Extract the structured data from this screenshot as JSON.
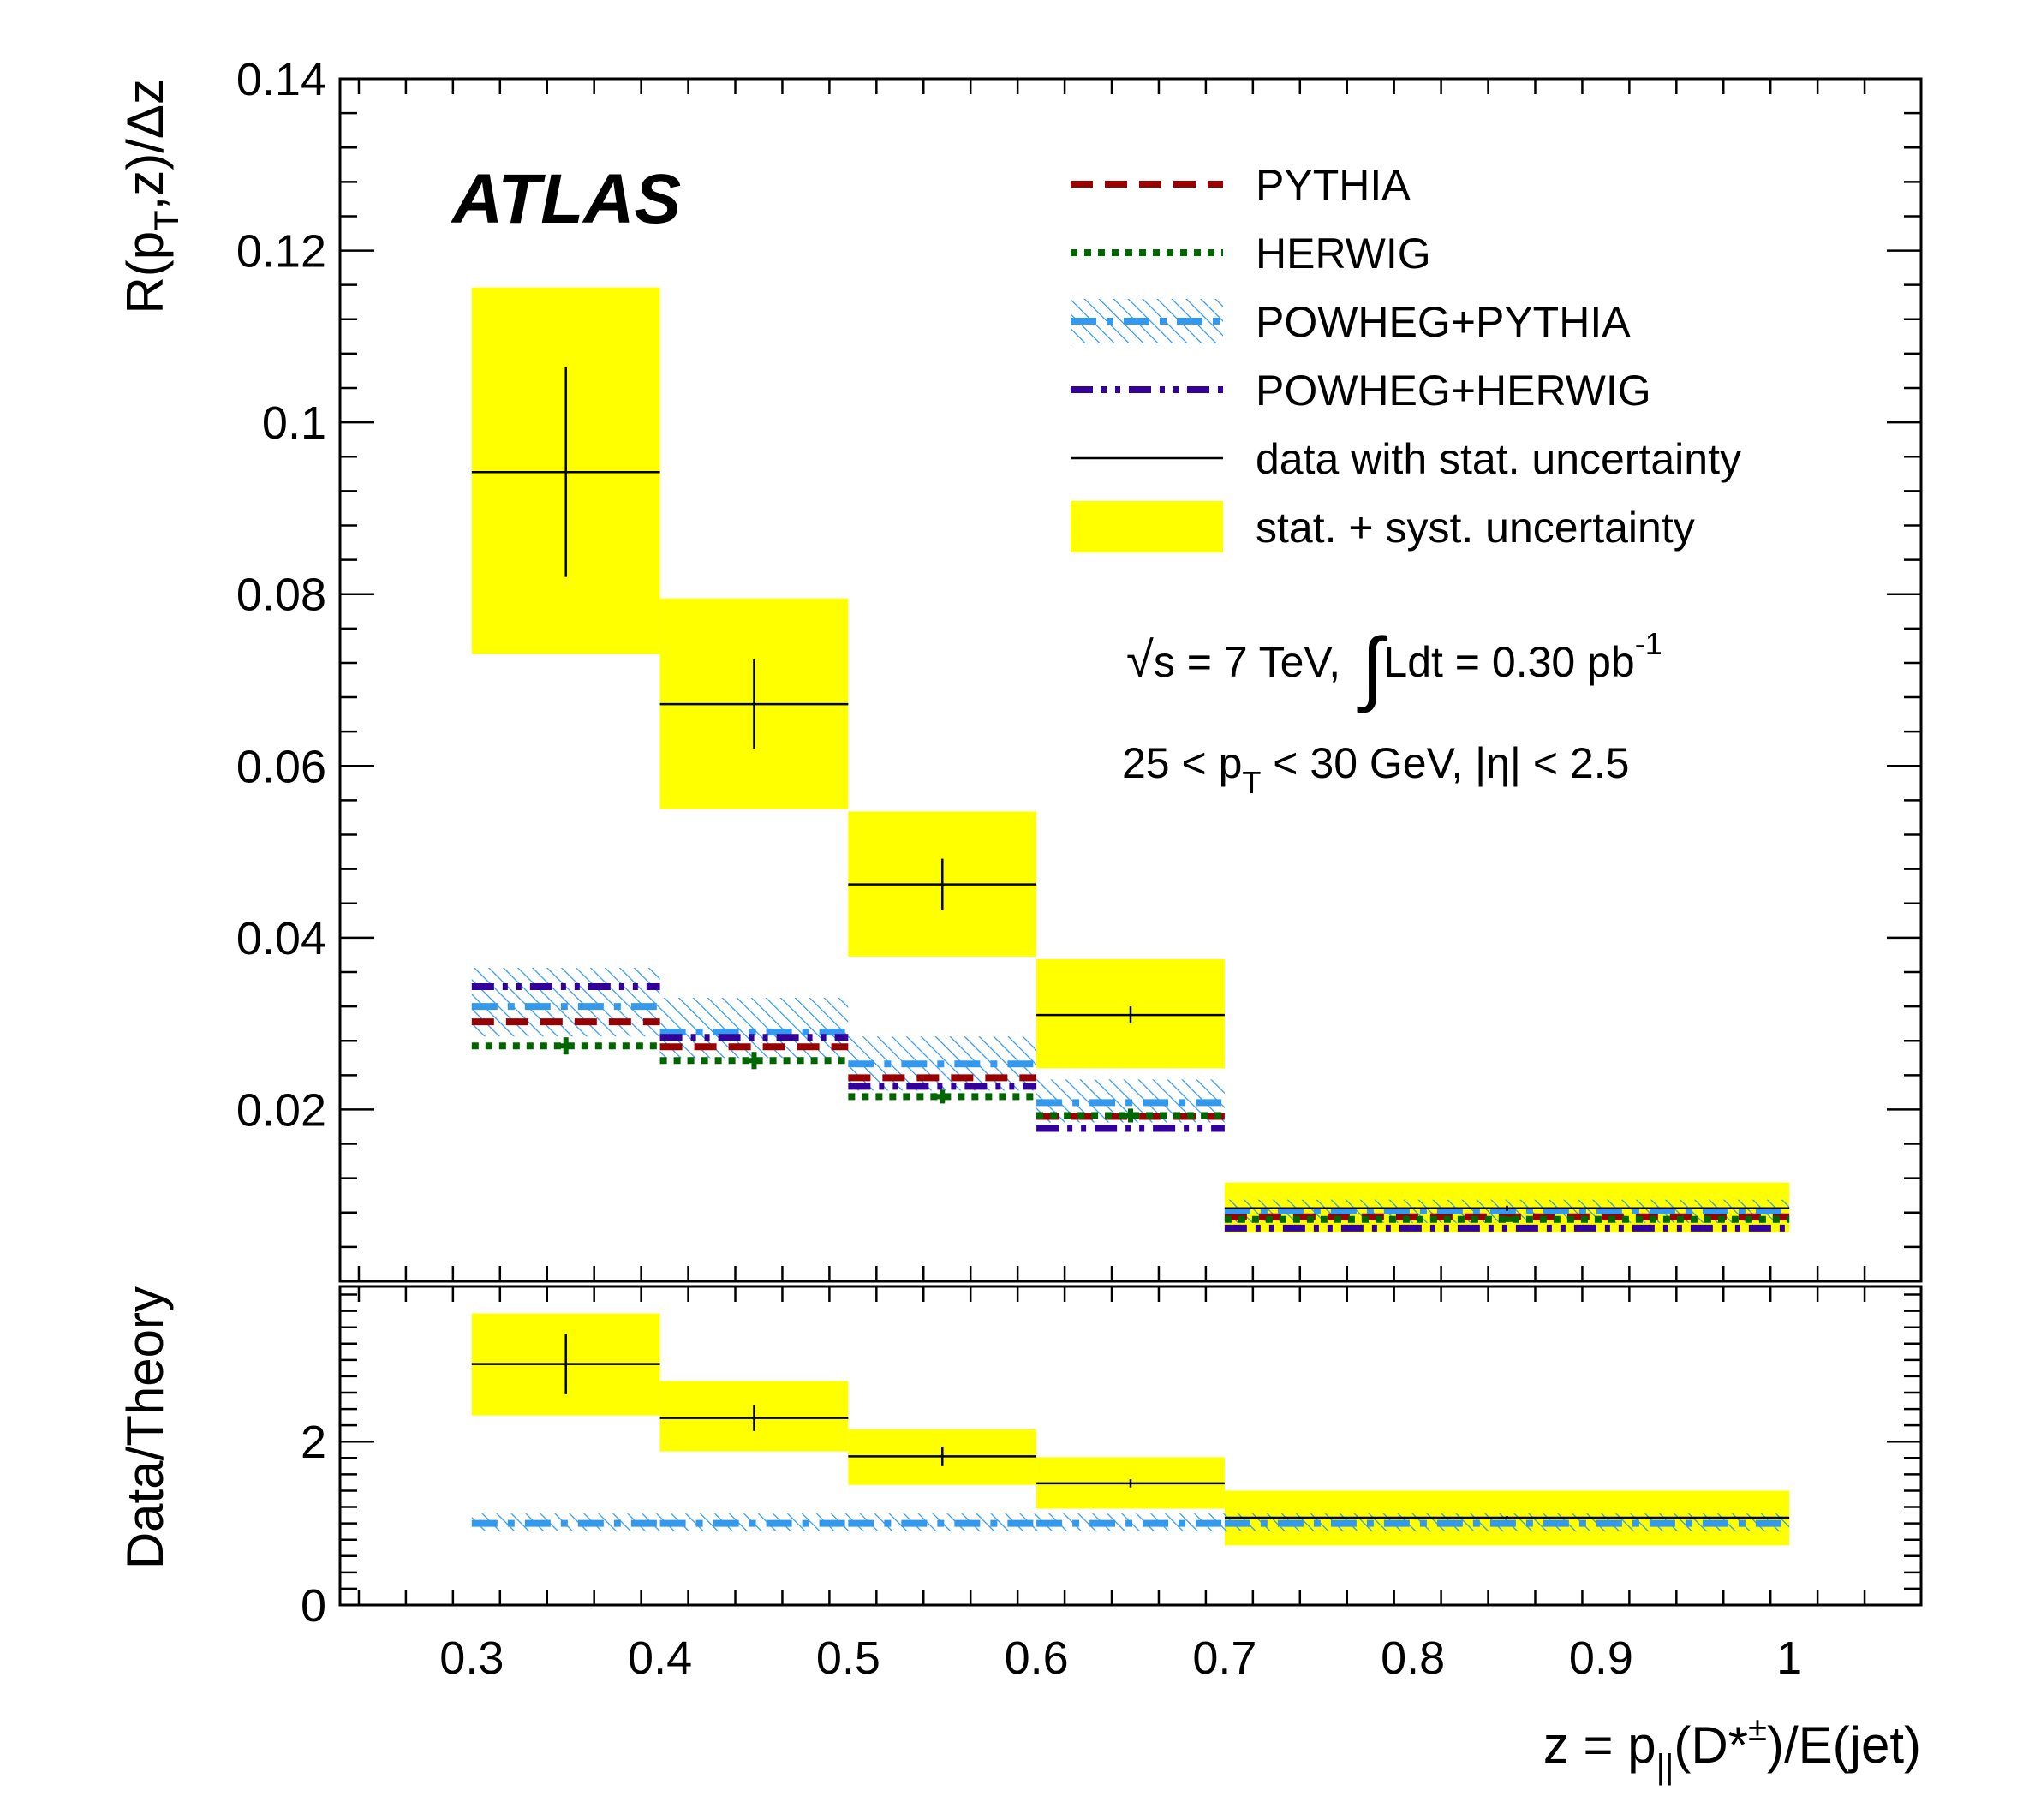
{
  "chart_data": [
    {
      "type": "bar",
      "panel": "main",
      "ylabel": "R(p_T,z)/Δz",
      "ylim": [
        0.0,
        0.14
      ],
      "xlim": [
        0.23,
        1.07
      ],
      "y_ticks": [
        "0.14",
        "0.12",
        "0.1",
        "0.08",
        "0.06",
        "0.04",
        "0.02"
      ],
      "y_tick_values": [
        0.14,
        0.12,
        0.1,
        0.08,
        0.06,
        0.04,
        0.02
      ],
      "bin_edges": [
        [
          0.3,
          0.4
        ],
        [
          0.4,
          0.5
        ],
        [
          0.5,
          0.6
        ],
        [
          0.6,
          0.7
        ],
        [
          0.7,
          1.0
        ]
      ],
      "data": {
        "name": "data with stat. uncertainty",
        "values": [
          0.0942,
          0.0672,
          0.0462,
          0.031,
          0.0085
        ],
        "stat_err": [
          0.0122,
          0.0052,
          0.003,
          0.001,
          0.0003
        ]
      },
      "syst_band": {
        "name": "stat. + syst. uncertainty",
        "low": [
          0.073,
          0.055,
          0.0378,
          0.0248,
          0.0057
        ],
        "high": [
          0.1157,
          0.0795,
          0.0547,
          0.0375,
          0.0115
        ]
      },
      "series": [
        {
          "name": "PYTHIA",
          "values": [
            0.0302,
            0.0273,
            0.0237,
            0.0192,
            0.0075
          ]
        },
        {
          "name": "HERWIG",
          "values": [
            0.0274,
            0.0257,
            0.0215,
            0.0193,
            0.0072
          ],
          "err": [
            0.001,
            0.001,
            0.0008,
            0.0008,
            0.0003
          ]
        },
        {
          "name": "POWHEG+PYTHIA",
          "values": [
            0.032,
            0.029,
            0.0253,
            0.0208,
            0.0082
          ],
          "band": [
            [
              0.0285,
              0.0365
            ],
            [
              0.026,
              0.033
            ],
            [
              0.0222,
              0.0285
            ],
            [
              0.0185,
              0.0235
            ],
            [
              0.0068,
              0.0095
            ]
          ]
        },
        {
          "name": "POWHEG+HERWIG",
          "values": [
            0.0343,
            0.0284,
            0.0227,
            0.0178,
            0.0062
          ]
        }
      ]
    },
    {
      "type": "bar",
      "panel": "ratio",
      "ylabel": "Data/Theory",
      "xlabel": "z = p_||(D*^±)/E(jet)",
      "ylim": [
        0.0,
        3.9
      ],
      "y_ticks": [
        "2",
        "0"
      ],
      "y_tick_values": [
        2,
        0
      ],
      "x_ticks": [
        "0.3",
        "0.4",
        "0.5",
        "0.6",
        "0.7",
        "0.8",
        "0.9",
        "1"
      ],
      "x_tick_values": [
        0.3,
        0.4,
        0.5,
        0.6,
        0.7,
        0.8,
        0.9,
        1.0
      ],
      "bin_edges": [
        [
          0.3,
          0.4
        ],
        [
          0.4,
          0.5
        ],
        [
          0.5,
          0.6
        ],
        [
          0.6,
          0.7
        ],
        [
          0.7,
          1.0
        ]
      ],
      "data": {
        "name": "data with stat. uncertainty",
        "values": [
          2.95,
          2.29,
          1.82,
          1.49,
          1.07
        ],
        "stat_err": [
          0.37,
          0.16,
          0.12,
          0.05,
          0.02
        ]
      },
      "syst_band": {
        "name": "stat. + syst. uncertainty",
        "low": [
          2.32,
          1.88,
          1.47,
          1.18,
          0.73
        ],
        "high": [
          3.57,
          2.74,
          2.15,
          1.81,
          1.4
        ]
      },
      "series": [
        {
          "name": "POWHEG+PYTHIA",
          "values": [
            1.0,
            1.0,
            1.0,
            1.0,
            1.0
          ],
          "band": [
            [
              0.9,
              1.12
            ],
            [
              0.9,
              1.12
            ],
            [
              0.9,
              1.12
            ],
            [
              0.9,
              1.12
            ],
            [
              0.9,
              1.12
            ]
          ]
        }
      ]
    }
  ],
  "labels": {
    "experiment": "ATLAS",
    "ylabel_main": {
      "pre": "R(p",
      "sub": "T",
      "post": ",z)/Δz"
    },
    "ylabel_ratio": "Data/Theory",
    "xlabel": {
      "pre": "z = p",
      "sub": "||",
      "mid": "(D*",
      "sup": "±",
      "post": ")/E(jet)"
    },
    "energy": {
      "sqrt": "√",
      "s_text": "s = 7 TeV,",
      "integral": "∫",
      "lumi_text": "Ldt = 0.30 pb",
      "lumi_sup": "-1"
    },
    "kinematics": {
      "pre": "25 < p",
      "sub": "T",
      "post": " < 30 GeV, |η| < 2.5"
    }
  },
  "legend": [
    {
      "label": "PYTHIA",
      "style": "dashed",
      "color": "#990000"
    },
    {
      "label": "HERWIG",
      "style": "dotted",
      "color": "#006600"
    },
    {
      "label": "POWHEG+PYTHIA",
      "style": "dashdot-hatched",
      "color": "#3399ee"
    },
    {
      "label": "POWHEG+HERWIG",
      "style": "dashdotdot",
      "color": "#330099"
    },
    {
      "label": "data with stat. uncertainty",
      "style": "solid",
      "color": "#000000"
    },
    {
      "label": "stat. + syst. uncertainty",
      "style": "fill",
      "color": "#ffff00"
    }
  ],
  "colors": {
    "pythia": "#990000",
    "herwig": "#006600",
    "powheg_pythia": "#3399ee",
    "powheg_herwig": "#330099",
    "syst_band": "#ffff00",
    "data": "#000000"
  }
}
